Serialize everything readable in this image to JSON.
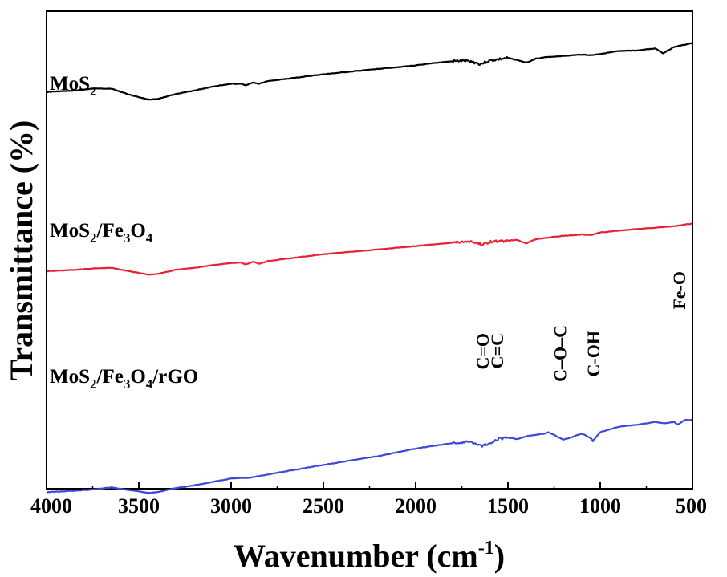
{
  "chart_data": {
    "type": "line",
    "xlabel": "Wavenumber (cm-1)",
    "ylabel": "Transmittance (%)",
    "xlim": [
      4000,
      500
    ],
    "x_reversed": true,
    "x_ticks": [
      "4000",
      "3500",
      "3000",
      "2500",
      "2000",
      "1500",
      "1000",
      "500"
    ],
    "y_ticks_shown": false,
    "series": [
      {
        "name": "MoS2",
        "label_parts": [
          [
            "MoS",
            false
          ],
          [
            "2",
            true
          ]
        ],
        "color": "#000000",
        "points": [
          [
            4000,
            0.58
          ],
          [
            3850,
            0.6
          ],
          [
            3750,
            0.63
          ],
          [
            3650,
            0.63
          ],
          [
            3550,
            0.54
          ],
          [
            3450,
            0.47
          ],
          [
            3400,
            0.475
          ],
          [
            3300,
            0.55
          ],
          [
            3200,
            0.6
          ],
          [
            3100,
            0.66
          ],
          [
            3000,
            0.7
          ],
          [
            2950,
            0.7
          ],
          [
            2920,
            0.68
          ],
          [
            2880,
            0.72
          ],
          [
            2850,
            0.7
          ],
          [
            2800,
            0.74
          ],
          [
            2500,
            0.84
          ],
          [
            2200,
            0.92
          ],
          [
            2000,
            0.97
          ],
          [
            1850,
            1.02
          ],
          [
            1750,
            1.04
          ],
          [
            1700,
            1.03
          ],
          [
            1650,
            0.99
          ],
          [
            1600,
            1.04
          ],
          [
            1550,
            1.06
          ],
          [
            1500,
            1.08
          ],
          [
            1450,
            1.05
          ],
          [
            1400,
            1.01
          ],
          [
            1350,
            1.07
          ],
          [
            1300,
            1.09
          ],
          [
            1100,
            1.13
          ],
          [
            1050,
            1.12
          ],
          [
            1000,
            1.14
          ],
          [
            900,
            1.18
          ],
          [
            800,
            1.19
          ],
          [
            700,
            1.22
          ],
          [
            660,
            1.15
          ],
          [
            600,
            1.24
          ],
          [
            500,
            1.3
          ]
        ]
      },
      {
        "name": "MoS2/Fe3O4",
        "label_parts": [
          [
            "MoS",
            false
          ],
          [
            "2",
            true
          ],
          [
            "/Fe",
            false
          ],
          [
            "3",
            true
          ],
          [
            "O",
            false
          ],
          [
            "4",
            true
          ]
        ],
        "color": "#e82032",
        "points": [
          [
            4000,
            0.0
          ],
          [
            3850,
            0.02
          ],
          [
            3750,
            0.04
          ],
          [
            3650,
            0.05
          ],
          [
            3550,
            0.0
          ],
          [
            3450,
            -0.05
          ],
          [
            3400,
            -0.04
          ],
          [
            3300,
            0.02
          ],
          [
            3200,
            0.05
          ],
          [
            3100,
            0.09
          ],
          [
            3000,
            0.12
          ],
          [
            2950,
            0.13
          ],
          [
            2920,
            0.1
          ],
          [
            2880,
            0.14
          ],
          [
            2850,
            0.11
          ],
          [
            2800,
            0.15
          ],
          [
            2500,
            0.25
          ],
          [
            2200,
            0.32
          ],
          [
            2000,
            0.37
          ],
          [
            1800,
            0.42
          ],
          [
            1700,
            0.44
          ],
          [
            1640,
            0.39
          ],
          [
            1600,
            0.43
          ],
          [
            1500,
            0.45
          ],
          [
            1450,
            0.46
          ],
          [
            1400,
            0.41
          ],
          [
            1350,
            0.47
          ],
          [
            1300,
            0.49
          ],
          [
            1200,
            0.52
          ],
          [
            1100,
            0.54
          ],
          [
            1050,
            0.53
          ],
          [
            1000,
            0.57
          ],
          [
            800,
            0.62
          ],
          [
            600,
            0.66
          ],
          [
            500,
            0.7
          ]
        ]
      },
      {
        "name": "MoS2/Fe3O4/rGO",
        "label_parts": [
          [
            "MoS",
            false
          ],
          [
            "2",
            true
          ],
          [
            "/Fe",
            false
          ],
          [
            "3",
            true
          ],
          [
            "O",
            false
          ],
          [
            "4",
            true
          ],
          [
            "/rGO",
            false
          ]
        ],
        "color": "#3d48d8",
        "points": [
          [
            4000,
            -0.78
          ],
          [
            3850,
            -0.76
          ],
          [
            3750,
            -0.74
          ],
          [
            3650,
            -0.71
          ],
          [
            3550,
            -0.75
          ],
          [
            3450,
            -0.79
          ],
          [
            3400,
            -0.78
          ],
          [
            3300,
            -0.72
          ],
          [
            3200,
            -0.68
          ],
          [
            3100,
            -0.63
          ],
          [
            3000,
            -0.58
          ],
          [
            2950,
            -0.57
          ],
          [
            2900,
            -0.57
          ],
          [
            2800,
            -0.52
          ],
          [
            2500,
            -0.38
          ],
          [
            2200,
            -0.25
          ],
          [
            2000,
            -0.14
          ],
          [
            1800,
            -0.06
          ],
          [
            1700,
            -0.04
          ],
          [
            1640,
            -0.1
          ],
          [
            1600,
            -0.06
          ],
          [
            1550,
            0.0
          ],
          [
            1500,
            0.02
          ],
          [
            1450,
            0.0
          ],
          [
            1400,
            0.04
          ],
          [
            1300,
            0.08
          ],
          [
            1280,
            0.1
          ],
          [
            1250,
            0.06
          ],
          [
            1200,
            -0.01
          ],
          [
            1150,
            0.03
          ],
          [
            1100,
            0.08
          ],
          [
            1050,
            0.01
          ],
          [
            1040,
            -0.03
          ],
          [
            1000,
            0.1
          ],
          [
            900,
            0.18
          ],
          [
            800,
            0.21
          ],
          [
            700,
            0.25
          ],
          [
            650,
            0.23
          ],
          [
            600,
            0.25
          ],
          [
            580,
            0.21
          ],
          [
            540,
            0.28
          ],
          [
            500,
            0.28
          ]
        ]
      }
    ],
    "band_labels": [
      {
        "text": "C=O",
        "x": 1640
      },
      {
        "text": "C=C",
        "x": 1560
      },
      {
        "text": "C–O–C",
        "x": 1220
      },
      {
        "text": "C-OH",
        "x": 1040
      },
      {
        "text": "Fe-O",
        "x": 575
      }
    ]
  }
}
